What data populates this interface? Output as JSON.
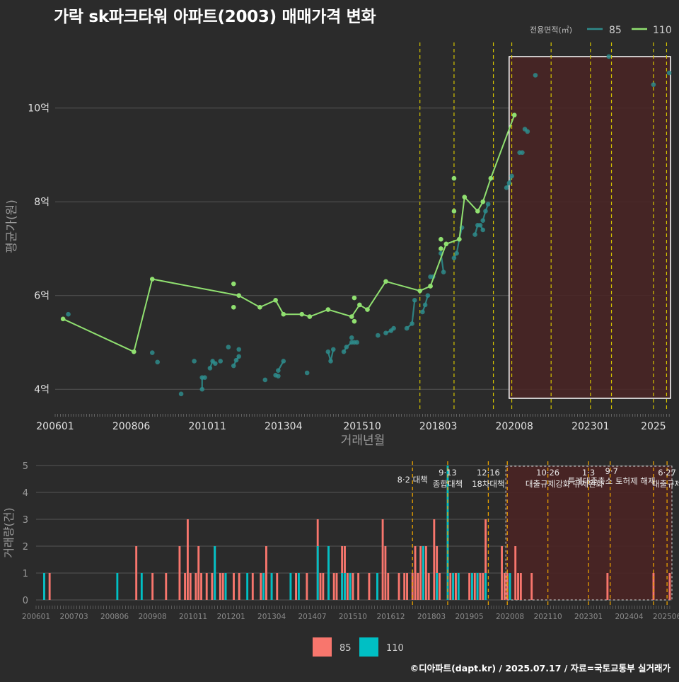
{
  "title": "가락 sk파크타워 아파트(2003) 매매가격 변화",
  "credit": "©디아파트(dapt.kr) / 2025.07.17 / 자료=국토교통부 실거래가",
  "colors": {
    "background": "#2b2b2b",
    "s85": "#2e8b8b",
    "s110": "#90e070",
    "bar85": "#f8766d",
    "bar110": "#00bfc4",
    "policy_line": "#d4c400",
    "highlight_fill": "#4a2424",
    "highlight_border": "#ffffff"
  },
  "chart_data": [
    {
      "type": "line",
      "name": "price",
      "ylabel": "평균가(원)",
      "xlabel": "거래년월",
      "ylim": [
        3.55,
        11.4
      ],
      "yticks": [
        {
          "v": 4,
          "label": "4억"
        },
        {
          "v": 6,
          "label": "6억"
        },
        {
          "v": 8,
          "label": "8억"
        },
        {
          "v": 10,
          "label": "10억"
        }
      ],
      "xticks": [
        "200601",
        "200806",
        "201011",
        "201304",
        "201510",
        "201803",
        "202008",
        "202301",
        "2025"
      ],
      "legend": {
        "title": "전용면적(㎡)",
        "placement": "top-right",
        "items": [
          {
            "key": "s85",
            "label": "85"
          },
          {
            "key": "s110",
            "label": "110"
          }
        ]
      },
      "policy_lines": [
        "2017-08",
        "2018-09",
        "2019-12",
        "2020-07",
        "2021-10",
        "2023-01",
        "2023-09",
        "2025-01",
        "2025-06"
      ],
      "highlight": {
        "from": "2020-06",
        "to": "2025-07"
      },
      "series": [
        {
          "key": "s85",
          "name": "85",
          "segments": [
            [
              [
                "2006-06",
                5.6
              ]
            ],
            [
              [
                "2009-02",
                4.78
              ]
            ],
            [
              [
                "2009-04",
                4.58
              ]
            ],
            [
              [
                "2010-01",
                3.9
              ]
            ],
            [
              [
                "2010-06",
                4.6
              ]
            ],
            [
              [
                "2010-09",
                4.0
              ],
              [
                "2010-09",
                4.25
              ],
              [
                "2010-10",
                4.25
              ]
            ],
            [
              [
                "2010-12",
                4.45
              ],
              [
                "2011-01",
                4.6
              ],
              [
                "2011-02",
                4.55
              ]
            ],
            [
              [
                "2011-04",
                4.6
              ]
            ],
            [
              [
                "2011-07",
                4.9
              ]
            ],
            [
              [
                "2011-09",
                4.5
              ],
              [
                "2011-10",
                4.62
              ],
              [
                "2011-11",
                4.7
              ]
            ],
            [
              [
                "2011-11",
                4.85
              ]
            ],
            [
              [
                "2012-09",
                4.2
              ]
            ],
            [
              [
                "2013-01",
                4.3
              ],
              [
                "2013-02",
                4.28
              ]
            ],
            [
              [
                "2013-02",
                4.4
              ],
              [
                "2013-04",
                4.6
              ]
            ],
            [
              [
                "2014-01",
                4.35
              ]
            ],
            [
              [
                "2014-09",
                4.8
              ],
              [
                "2014-10",
                4.6
              ],
              [
                "2014-11",
                4.85
              ]
            ],
            [
              [
                "2015-03",
                4.8
              ],
              [
                "2015-04",
                4.9
              ],
              [
                "2015-06",
                5.0
              ]
            ],
            [
              [
                "2015-06",
                5.1
              ]
            ],
            [
              [
                "2015-07",
                5.0
              ],
              [
                "2015-08",
                5.0
              ]
            ],
            [
              [
                "2016-04",
                5.15
              ]
            ],
            [
              [
                "2016-07",
                5.2
              ],
              [
                "2016-09",
                5.25
              ],
              [
                "2016-10",
                5.3
              ]
            ],
            [
              [
                "2017-03",
                5.3
              ],
              [
                "2017-05",
                5.4
              ],
              [
                "2017-06",
                5.9
              ]
            ],
            [
              [
                "2017-09",
                5.65
              ],
              [
                "2017-10",
                5.8
              ],
              [
                "2017-11",
                6.0
              ]
            ],
            [
              [
                "2017-12",
                6.4
              ],
              [
                "2018-01",
                6.4
              ]
            ],
            [
              [
                "2018-04",
                6.9
              ],
              [
                "2018-05",
                6.5
              ]
            ],
            [
              [
                "2018-09",
                6.8
              ],
              [
                "2018-10",
                6.9
              ],
              [
                "2018-11",
                7.2
              ],
              [
                "2018-12",
                7.45
              ]
            ],
            [
              [
                "2019-05",
                7.3
              ],
              [
                "2019-06",
                7.5
              ],
              [
                "2019-07",
                7.5
              ],
              [
                "2019-08",
                7.4
              ]
            ],
            [
              [
                "2019-08",
                7.6
              ],
              [
                "2019-09",
                7.8
              ],
              [
                "2019-10",
                7.95
              ]
            ],
            [
              [
                "2020-05",
                8.3
              ],
              [
                "2020-06",
                8.4
              ],
              [
                "2020-07",
                8.55
              ]
            ],
            [
              [
                "2020-10",
                9.05
              ],
              [
                "2020-11",
                9.05
              ]
            ],
            [
              [
                "2020-12",
                9.55
              ],
              [
                "2021-01",
                9.5
              ]
            ],
            [
              [
                "2021-04",
                10.7
              ]
            ],
            [
              [
                "2023-08",
                11.1
              ]
            ],
            [
              [
                "2025-01",
                10.5
              ]
            ],
            [
              [
                "2025-07",
                10.75
              ]
            ]
          ]
        },
        {
          "key": "s110",
          "name": "110",
          "points": [
            [
              "2006-04",
              5.5
            ],
            [
              "2008-07",
              4.8
            ],
            [
              "2009-02",
              6.35
            ],
            [
              "2011-11",
              6.0
            ],
            [
              "2012-07",
              5.75
            ],
            [
              "2013-01",
              5.9
            ],
            [
              "2013-04",
              5.6
            ],
            [
              "2013-11",
              5.6
            ],
            [
              "2014-02",
              5.55
            ],
            [
              "2014-09",
              5.7
            ],
            [
              "2015-06",
              5.55
            ],
            [
              "2015-09",
              5.8
            ],
            [
              "2015-12",
              5.7
            ],
            [
              "2016-07",
              6.3
            ],
            [
              "2017-08",
              6.1
            ],
            [
              "2017-12",
              6.2
            ],
            [
              "2018-06",
              7.1
            ],
            [
              "2018-11",
              7.2
            ],
            [
              "2019-01",
              8.1
            ],
            [
              "2019-06",
              7.8
            ],
            [
              "2019-08",
              8.0
            ],
            [
              "2019-11",
              8.5
            ],
            [
              "2020-08",
              9.85
            ]
          ],
          "extra_points": [
            [
              "2011-09",
              6.25
            ],
            [
              "2011-09",
              5.75
            ],
            [
              "2015-07",
              5.45
            ],
            [
              "2015-07",
              5.95
            ],
            [
              "2017-12",
              6.2
            ],
            [
              "2018-04",
              7.2
            ],
            [
              "2018-04",
              7.0
            ],
            [
              "2018-09",
              8.5
            ],
            [
              "2018-09",
              7.8
            ]
          ]
        }
      ]
    },
    {
      "type": "bar",
      "name": "volume",
      "ylabel": "거래량(건)",
      "ylim": [
        0,
        5
      ],
      "yticks": [
        "0",
        "1",
        "2",
        "3",
        "4",
        "5"
      ],
      "xticks": [
        "200601",
        "200703",
        "200806",
        "200908",
        "201011",
        "201201",
        "201304",
        "201407",
        "201510",
        "201612",
        "201803",
        "201905",
        "202008",
        "202110",
        "202301",
        "202404",
        "202506"
      ],
      "legend": [
        {
          "key": "bar85",
          "label": "85"
        },
        {
          "key": "bar110",
          "label": "110"
        }
      ],
      "policies": [
        {
          "month": "2017-08",
          "lines": [
            "8·2 대책"
          ]
        },
        {
          "month": "2018-09",
          "lines": [
            "9·13",
            "종합대책"
          ]
        },
        {
          "month": "2019-12",
          "lines": [
            "12·16",
            "18차대책"
          ]
        },
        {
          "month": "2020-07",
          "lines": []
        },
        {
          "month": "2021-10",
          "lines": [
            "10·26",
            "대출규제강화"
          ]
        },
        {
          "month": "2023-01",
          "lines": [
            "1·3",
            "규제완화"
          ]
        },
        {
          "month": "2023-09",
          "lines": [
            "9·7",
            "특례대출축소 토허제 해제"
          ]
        },
        {
          "month": "2025-01",
          "lines": []
        },
        {
          "month": "2025-06",
          "lines": [
            "6·27",
            "대출규제"
          ]
        }
      ],
      "highlight": {
        "from": "2020-07",
        "to": "2025-07"
      },
      "bars": [
        [
          "2006-04",
          1,
          1
        ],
        [
          "2006-06",
          1,
          0
        ],
        [
          "2008-07",
          0,
          1
        ],
        [
          "2009-02",
          2,
          0
        ],
        [
          "2009-04",
          0,
          1
        ],
        [
          "2009-08",
          1,
          0
        ],
        [
          "2010-01",
          1,
          0
        ],
        [
          "2010-06",
          2,
          0
        ],
        [
          "2010-08",
          1,
          0
        ],
        [
          "2010-09",
          3,
          0
        ],
        [
          "2010-10",
          1,
          0
        ],
        [
          "2010-12",
          1,
          0
        ],
        [
          "2011-01",
          2,
          0
        ],
        [
          "2011-02",
          1,
          0
        ],
        [
          "2011-04",
          1,
          0
        ],
        [
          "2011-06",
          1,
          0
        ],
        [
          "2011-07",
          2,
          2
        ],
        [
          "2011-09",
          1,
          0
        ],
        [
          "2011-10",
          1,
          0
        ],
        [
          "2011-11",
          1,
          1
        ],
        [
          "2012-02",
          1,
          0
        ],
        [
          "2012-04",
          1,
          0
        ],
        [
          "2012-07",
          0,
          1
        ],
        [
          "2012-09",
          1,
          0
        ],
        [
          "2012-12",
          1,
          0
        ],
        [
          "2013-01",
          1,
          1
        ],
        [
          "2013-02",
          2,
          0
        ],
        [
          "2013-04",
          1,
          1
        ],
        [
          "2013-06",
          1,
          0
        ],
        [
          "2013-11",
          0,
          1
        ],
        [
          "2014-01",
          1,
          0
        ],
        [
          "2014-02",
          0,
          1
        ],
        [
          "2014-05",
          1,
          0
        ],
        [
          "2014-09",
          3,
          2
        ],
        [
          "2014-10",
          1,
          0
        ],
        [
          "2014-11",
          1,
          0
        ],
        [
          "2015-01",
          2,
          2
        ],
        [
          "2015-03",
          1,
          0
        ],
        [
          "2015-04",
          1,
          0
        ],
        [
          "2015-06",
          2,
          1
        ],
        [
          "2015-07",
          2,
          1
        ],
        [
          "2015-08",
          1,
          0
        ],
        [
          "2015-09",
          1,
          1
        ],
        [
          "2015-10",
          1,
          0
        ],
        [
          "2015-12",
          1,
          0
        ],
        [
          "2016-04",
          1,
          0
        ],
        [
          "2016-07",
          1,
          1
        ],
        [
          "2016-09",
          3,
          0
        ],
        [
          "2016-10",
          2,
          0
        ],
        [
          "2016-11",
          1,
          0
        ],
        [
          "2017-03",
          1,
          0
        ],
        [
          "2017-05",
          1,
          0
        ],
        [
          "2017-06",
          1,
          0
        ],
        [
          "2017-08",
          1,
          0
        ],
        [
          "2017-09",
          2,
          0
        ],
        [
          "2017-10",
          1,
          0
        ],
        [
          "2017-11",
          2,
          0
        ],
        [
          "2017-12",
          2,
          2
        ],
        [
          "2018-01",
          2,
          0
        ],
        [
          "2018-02",
          1,
          0
        ],
        [
          "2018-04",
          3,
          0
        ],
        [
          "2018-05",
          2,
          1
        ],
        [
          "2018-06",
          1,
          0
        ],
        [
          "2018-09",
          3,
          5
        ],
        [
          "2018-10",
          1,
          0
        ],
        [
          "2018-11",
          1,
          1
        ],
        [
          "2018-12",
          1,
          0
        ],
        [
          "2019-01",
          0,
          1
        ],
        [
          "2019-05",
          1,
          0
        ],
        [
          "2019-06",
          1,
          1
        ],
        [
          "2019-07",
          1,
          0
        ],
        [
          "2019-08",
          1,
          1
        ],
        [
          "2019-09",
          1,
          0
        ],
        [
          "2019-10",
          1,
          0
        ],
        [
          "2019-11",
          3,
          1
        ],
        [
          "2020-05",
          2,
          0
        ],
        [
          "2020-06",
          1,
          0
        ],
        [
          "2020-07",
          1,
          0
        ],
        [
          "2020-08",
          0,
          1
        ],
        [
          "2020-10",
          2,
          0
        ],
        [
          "2020-11",
          1,
          0
        ],
        [
          "2020-12",
          1,
          0
        ],
        [
          "2021-04",
          1,
          0
        ],
        [
          "2023-08",
          1,
          0
        ],
        [
          "2025-01",
          1,
          0
        ],
        [
          "2025-07",
          1,
          0
        ]
      ]
    }
  ]
}
